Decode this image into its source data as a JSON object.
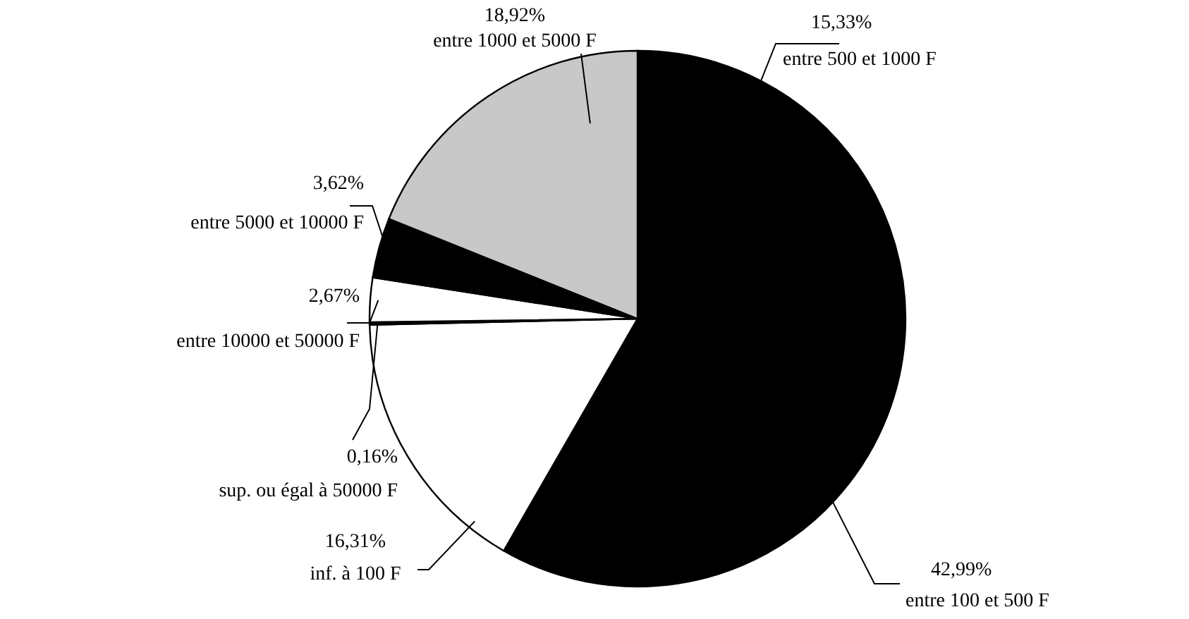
{
  "chart_data": {
    "type": "pie",
    "categories": [
      "entre 500 et 1000 F",
      "entre 100 et 500 F",
      "inf. à 100 F",
      "sup. ou égal à 50000 F",
      "entre 10000 et 50000 F",
      "entre 5000 et 10000 F",
      "entre 1000 et 5000 F"
    ],
    "values": [
      15.33,
      42.99,
      16.31,
      0.16,
      2.67,
      3.62,
      18.92
    ],
    "value_labels": [
      "15,33%",
      "42,99%",
      "16,31%",
      "0,16%",
      "2,67%",
      "3,62%",
      "18,92%"
    ],
    "colors": [
      "#000000",
      "#000000",
      "#ffffff",
      "#000000",
      "#ffffff",
      "#000000",
      "#c8c8c8"
    ],
    "legend": false
  }
}
